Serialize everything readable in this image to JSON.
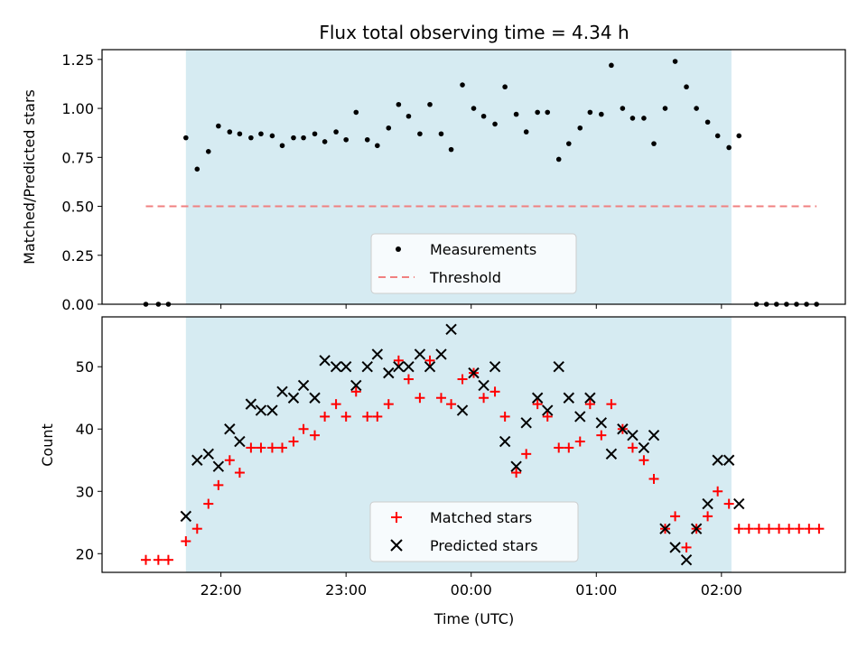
{
  "chart_data": [
    {
      "type": "scatter",
      "title": "Flux total observing time = 4.34 h",
      "xlabel": "",
      "ylabel": "Matched/Predicted stars",
      "ylim": [
        0,
        1.3
      ],
      "yticks": [
        "0.00",
        "0.25",
        "0.50",
        "0.75",
        "1.00",
        "1.25"
      ],
      "shaded_x_range": [
        "21:43",
        "02:05"
      ],
      "legend_position": "lower-center",
      "series": [
        {
          "name": "Measurements",
          "marker": "dot",
          "color": "#000000",
          "points": [
            [
              -1.6,
              0
            ],
            [
              -1.5,
              0
            ],
            [
              -1.42,
              0
            ],
            [
              -1.28,
              0.85
            ],
            [
              -1.19,
              0.69
            ],
            [
              -1.1,
              0.78
            ],
            [
              -1.02,
              0.91
            ],
            [
              -0.93,
              0.88
            ],
            [
              -0.85,
              0.87
            ],
            [
              -0.76,
              0.85
            ],
            [
              -0.68,
              0.87
            ],
            [
              -0.59,
              0.86
            ],
            [
              -0.51,
              0.81
            ],
            [
              -0.42,
              0.85
            ],
            [
              -0.34,
              0.85
            ],
            [
              -0.25,
              0.87
            ],
            [
              -0.17,
              0.83
            ],
            [
              -0.08,
              0.88
            ],
            [
              0.0,
              0.84
            ],
            [
              0.08,
              0.98
            ],
            [
              0.17,
              0.84
            ],
            [
              0.25,
              0.81
            ],
            [
              0.34,
              0.9
            ],
            [
              0.42,
              1.02
            ],
            [
              0.5,
              0.96
            ],
            [
              0.59,
              0.87
            ],
            [
              0.67,
              1.02
            ],
            [
              0.76,
              0.87
            ],
            [
              0.84,
              0.79
            ],
            [
              0.93,
              1.12
            ],
            [
              1.02,
              1.0
            ],
            [
              1.1,
              0.96
            ],
            [
              1.19,
              0.92
            ],
            [
              1.27,
              1.11
            ],
            [
              1.36,
              0.97
            ],
            [
              1.44,
              0.88
            ],
            [
              1.53,
              0.98
            ],
            [
              1.61,
              0.98
            ],
            [
              1.7,
              0.74
            ],
            [
              1.78,
              0.82
            ],
            [
              1.87,
              0.9
            ],
            [
              1.95,
              0.98
            ],
            [
              2.04,
              0.97
            ],
            [
              2.12,
              1.22
            ],
            [
              2.21,
              1.0
            ],
            [
              2.29,
              0.95
            ],
            [
              2.38,
              0.95
            ],
            [
              2.46,
              0.82
            ],
            [
              2.55,
              1.0
            ],
            [
              2.63,
              1.24
            ],
            [
              2.72,
              1.11
            ],
            [
              2.8,
              1.0
            ],
            [
              2.89,
              0.93
            ],
            [
              2.97,
              0.86
            ],
            [
              3.06,
              0.8
            ],
            [
              3.14,
              0.86
            ],
            [
              3.28,
              0
            ],
            [
              3.36,
              0
            ],
            [
              3.44,
              0
            ],
            [
              3.52,
              0
            ],
            [
              3.6,
              0
            ],
            [
              3.68,
              0
            ],
            [
              3.76,
              0
            ]
          ]
        },
        {
          "name": "Threshold",
          "type": "line",
          "style": "dashed",
          "color": "#f08080",
          "points": [
            [
              -1.6,
              0.5
            ],
            [
              3.76,
              0.5
            ]
          ]
        }
      ]
    },
    {
      "type": "scatter",
      "xlabel": "Time (UTC)",
      "ylabel": "Count",
      "ylim": [
        17,
        58
      ],
      "yticks": [
        "20",
        "30",
        "40",
        "50"
      ],
      "xticks": [
        "22:00",
        "23:00",
        "00:00",
        "01:00",
        "02:00"
      ],
      "shaded_x_range": [
        "21:43",
        "02:05"
      ],
      "legend_position": "lower-center",
      "series": [
        {
          "name": "Matched stars",
          "marker": "plus",
          "color": "#ff0000",
          "points": [
            [
              -1.6,
              19
            ],
            [
              -1.5,
              19
            ],
            [
              -1.42,
              19
            ],
            [
              -1.28,
              22
            ],
            [
              -1.19,
              24
            ],
            [
              -1.1,
              28
            ],
            [
              -1.02,
              31
            ],
            [
              -0.93,
              35
            ],
            [
              -0.85,
              33
            ],
            [
              -0.76,
              37
            ],
            [
              -0.68,
              37
            ],
            [
              -0.59,
              37
            ],
            [
              -0.51,
              37
            ],
            [
              -0.42,
              38
            ],
            [
              -0.34,
              40
            ],
            [
              -0.25,
              39
            ],
            [
              -0.17,
              42
            ],
            [
              -0.08,
              44
            ],
            [
              0.0,
              42
            ],
            [
              0.08,
              46
            ],
            [
              0.17,
              42
            ],
            [
              0.25,
              42
            ],
            [
              0.34,
              44
            ],
            [
              0.42,
              51
            ],
            [
              0.5,
              48
            ],
            [
              0.59,
              45
            ],
            [
              0.67,
              51
            ],
            [
              0.76,
              45
            ],
            [
              0.84,
              44
            ],
            [
              0.93,
              48
            ],
            [
              1.02,
              49
            ],
            [
              1.1,
              45
            ],
            [
              1.19,
              46
            ],
            [
              1.27,
              42
            ],
            [
              1.36,
              33
            ],
            [
              1.44,
              36
            ],
            [
              1.53,
              44
            ],
            [
              1.61,
              42
            ],
            [
              1.7,
              37
            ],
            [
              1.78,
              37
            ],
            [
              1.87,
              38
            ],
            [
              1.95,
              44
            ],
            [
              2.04,
              39
            ],
            [
              2.12,
              44
            ],
            [
              2.21,
              40
            ],
            [
              2.29,
              37
            ],
            [
              2.38,
              35
            ],
            [
              2.46,
              32
            ],
            [
              2.55,
              24
            ],
            [
              2.63,
              26
            ],
            [
              2.72,
              21
            ],
            [
              2.8,
              24
            ],
            [
              2.89,
              26
            ],
            [
              2.97,
              30
            ],
            [
              3.06,
              28
            ],
            [
              3.14,
              24
            ],
            [
              3.22,
              24
            ],
            [
              3.3,
              24
            ],
            [
              3.38,
              24
            ],
            [
              3.46,
              24
            ],
            [
              3.54,
              24
            ],
            [
              3.62,
              24
            ],
            [
              3.7,
              24
            ],
            [
              3.78,
              24
            ]
          ]
        },
        {
          "name": "Predicted stars",
          "marker": "x",
          "color": "#000000",
          "points": [
            [
              -1.28,
              26
            ],
            [
              -1.19,
              35
            ],
            [
              -1.1,
              36
            ],
            [
              -1.02,
              34
            ],
            [
              -0.93,
              40
            ],
            [
              -0.85,
              38
            ],
            [
              -0.76,
              44
            ],
            [
              -0.68,
              43
            ],
            [
              -0.59,
              43
            ],
            [
              -0.51,
              46
            ],
            [
              -0.42,
              45
            ],
            [
              -0.34,
              47
            ],
            [
              -0.25,
              45
            ],
            [
              -0.17,
              51
            ],
            [
              -0.08,
              50
            ],
            [
              0.0,
              50
            ],
            [
              0.08,
              47
            ],
            [
              0.17,
              50
            ],
            [
              0.25,
              52
            ],
            [
              0.34,
              49
            ],
            [
              0.42,
              50
            ],
            [
              0.5,
              50
            ],
            [
              0.59,
              52
            ],
            [
              0.67,
              50
            ],
            [
              0.76,
              52
            ],
            [
              0.84,
              56
            ],
            [
              0.93,
              43
            ],
            [
              1.02,
              49
            ],
            [
              1.1,
              47
            ],
            [
              1.19,
              50
            ],
            [
              1.27,
              38
            ],
            [
              1.36,
              34
            ],
            [
              1.44,
              41
            ],
            [
              1.53,
              45
            ],
            [
              1.61,
              43
            ],
            [
              1.7,
              50
            ],
            [
              1.78,
              45
            ],
            [
              1.87,
              42
            ],
            [
              1.95,
              45
            ],
            [
              2.04,
              41
            ],
            [
              2.12,
              36
            ],
            [
              2.21,
              40
            ],
            [
              2.29,
              39
            ],
            [
              2.38,
              37
            ],
            [
              2.46,
              39
            ],
            [
              2.55,
              24
            ],
            [
              2.63,
              21
            ],
            [
              2.72,
              19
            ],
            [
              2.8,
              24
            ],
            [
              2.89,
              28
            ],
            [
              2.97,
              35
            ],
            [
              3.06,
              35
            ],
            [
              3.14,
              28
            ]
          ]
        }
      ]
    }
  ],
  "x_axis": {
    "unit": "hours relative to 23:00 UTC",
    "range": [
      -1.95,
      3.99
    ],
    "shade_start": -1.28,
    "shade_end": 3.08,
    "tick_values": [
      -1,
      0,
      1,
      2,
      3
    ]
  },
  "colors": {
    "shade": "#add8e6",
    "threshold": "#f08080",
    "matched": "#ff0000",
    "predicted": "#000000",
    "measurements": "#000000"
  }
}
